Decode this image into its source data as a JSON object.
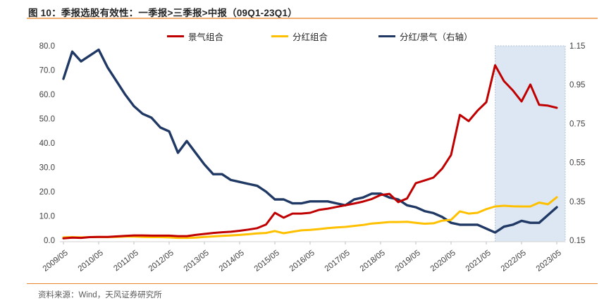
{
  "figure": {
    "title": "图 10：季报选股有效性：一季报>三季报>中报（09Q1-23Q1）",
    "source": "资料来源：Wind，天风证券研究所"
  },
  "colors": {
    "boom_red": "#C00000",
    "dividend_yellow": "#FFC000",
    "ratio_navy": "#1F3864",
    "rule_orange_top": "#F2AE71",
    "rule_orange_bottom": "#E8832E",
    "axis_line": "#D9D9D9",
    "tick_mark": "#BFBFBF",
    "axis_text": "#404040",
    "source_text": "#595959",
    "highlight_fill": "#DCE7F3",
    "highlight_border": "#A6B8CC"
  },
  "legend": [
    {
      "label": "景气组合",
      "color": "#C00000"
    },
    {
      "label": "分红组合",
      "color": "#FFC000"
    },
    {
      "label": "分红/景气（右轴）",
      "color": "#1F3864"
    }
  ],
  "chart_data": {
    "type": "line",
    "title": "季报选股有效性：一季报>三季报>中报（09Q1-23Q1）",
    "grid": false,
    "legend_position": "top",
    "categories": [
      "2009Q1",
      "2009Q2",
      "2009Q3",
      "2009Q4",
      "2010Q1",
      "2010Q2",
      "2010Q3",
      "2010Q4",
      "2011Q1",
      "2011Q2",
      "2011Q3",
      "2011Q4",
      "2012Q1",
      "2012Q2",
      "2012Q3",
      "2012Q4",
      "2013Q1",
      "2013Q2",
      "2013Q3",
      "2013Q4",
      "2014Q1",
      "2014Q2",
      "2014Q3",
      "2014Q4",
      "2015Q1",
      "2015Q2",
      "2015Q3",
      "2015Q4",
      "2016Q1",
      "2016Q2",
      "2016Q3",
      "2016Q4",
      "2017Q1",
      "2017Q2",
      "2017Q3",
      "2017Q4",
      "2018Q1",
      "2018Q2",
      "2018Q3",
      "2018Q4",
      "2019Q1",
      "2019Q2",
      "2019Q3",
      "2019Q4",
      "2020Q1",
      "2020Q2",
      "2020Q3",
      "2020Q4",
      "2021Q1",
      "2021Q2",
      "2021Q3",
      "2021Q4",
      "2022Q1",
      "2022Q2",
      "2022Q3",
      "2022Q4",
      "2023Q1"
    ],
    "x_tick_labels": [
      "2009/05",
      "2010/05",
      "2011/05",
      "2012/05",
      "2013/05",
      "2014/05",
      "2015/05",
      "2016/05",
      "2017/05",
      "2018/05",
      "2019/05",
      "2020/05",
      "2021/05",
      "2022/05",
      "2023/05"
    ],
    "x_tick_every": 4,
    "series": [
      {
        "name": "分红/景气（右轴）",
        "axis": "right",
        "color": "#1F3864",
        "width": 3.4,
        "values": [
          0.98,
          1.12,
          1.07,
          1.1,
          1.13,
          1.04,
          0.97,
          0.9,
          0.84,
          0.8,
          0.78,
          0.73,
          0.71,
          0.6,
          0.66,
          0.6,
          0.54,
          0.49,
          0.49,
          0.46,
          0.45,
          0.44,
          0.43,
          0.4,
          0.36,
          0.36,
          0.34,
          0.34,
          0.35,
          0.35,
          0.35,
          0.34,
          0.33,
          0.36,
          0.37,
          0.39,
          0.39,
          0.37,
          0.36,
          0.33,
          0.32,
          0.3,
          0.29,
          0.27,
          0.24,
          0.23,
          0.23,
          0.23,
          0.21,
          0.19,
          0.22,
          0.23,
          0.25,
          0.24,
          0.24,
          0.28,
          0.32
        ]
      },
      {
        "name": "分红组合",
        "axis": "left",
        "color": "#FFC000",
        "width": 3,
        "values": [
          1.2,
          1.3,
          1.2,
          1.3,
          1.4,
          1.3,
          1.4,
          1.5,
          1.5,
          1.4,
          1.3,
          1.3,
          1.2,
          1.0,
          1.0,
          1.1,
          1.4,
          1.6,
          1.8,
          2.0,
          2.2,
          2.5,
          2.8,
          3.0,
          3.8,
          2.9,
          3.5,
          4.1,
          4.3,
          4.6,
          5.0,
          5.3,
          5.5,
          5.9,
          6.3,
          6.9,
          7.2,
          7.5,
          7.5,
          7.6,
          7.2,
          6.8,
          7.0,
          8.1,
          8.4,
          11.9,
          11.0,
          11.3,
          12.8,
          13.9,
          14.2,
          14.0,
          13.9,
          13.9,
          15.5,
          14.8,
          17.7
        ]
      },
      {
        "name": "景气组合",
        "axis": "left",
        "color": "#C00000",
        "width": 3,
        "values": [
          0.8,
          1.1,
          1.0,
          1.3,
          1.4,
          1.4,
          1.6,
          1.8,
          2.0,
          2.0,
          1.9,
          1.9,
          1.9,
          1.7,
          1.7,
          2.2,
          2.6,
          3.0,
          3.3,
          3.5,
          3.9,
          4.4,
          5.0,
          6.5,
          11.3,
          9.3,
          11.0,
          11.0,
          11.3,
          12.5,
          13.0,
          13.7,
          14.4,
          15.1,
          15.9,
          17.0,
          18.6,
          19.1,
          15.7,
          17.2,
          23.5,
          24.6,
          25.8,
          29.5,
          35.1,
          51.6,
          49.0,
          53.3,
          56.8,
          72.0,
          65.5,
          61.7,
          57.1,
          64.1,
          55.7,
          55.4,
          54.5
        ]
      }
    ],
    "y_axis_left": {
      "min": 0,
      "max": 80,
      "tick_step": 10,
      "tick_labels": [
        "0.0",
        "10.0",
        "20.0",
        "30.0",
        "40.0",
        "50.0",
        "60.0",
        "70.0",
        "80.0"
      ]
    },
    "y_axis_right": {
      "min": 0.15,
      "max": 1.15,
      "tick_step": 0.2,
      "tick_labels": [
        "0.15",
        "0.35",
        "0.55",
        "0.75",
        "0.95",
        "1.15"
      ]
    },
    "highlight_region": {
      "start_category": "2021Q2",
      "end_category": "2023Q1"
    }
  }
}
